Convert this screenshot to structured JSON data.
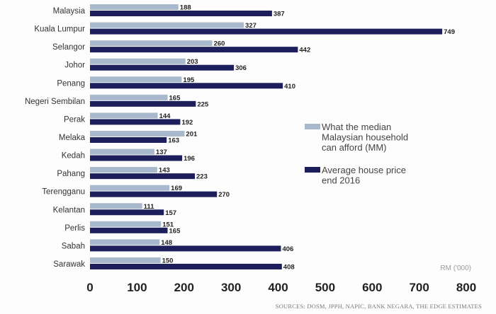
{
  "chart_data": {
    "type": "bar",
    "orientation": "horizontal",
    "categories": [
      "Malaysia",
      "Kuala Lumpur",
      "Selangor",
      "Johor",
      "Penang",
      "Negeri Sembilan",
      "Perak",
      "Melaka",
      "Kedah",
      "Pahang",
      "Terengganu",
      "Kelantan",
      "Perlis",
      "Sabah",
      "Sarawak"
    ],
    "series": [
      {
        "name": "What the median Malaysian household can afford (MM)",
        "legend_lines": [
          "What the median",
          "Malaysian household",
          "can afford (MM)"
        ],
        "color": "#a9b9cd",
        "values": [
          188,
          327,
          260,
          203,
          195,
          165,
          144,
          201,
          137,
          143,
          169,
          111,
          151,
          148,
          150
        ]
      },
      {
        "name": "Average house price end 2016",
        "legend_lines": [
          "Average house price",
          "end 2016"
        ],
        "color": "#1c1f5c",
        "values": [
          387,
          749,
          442,
          306,
          410,
          225,
          192,
          163,
          196,
          223,
          270,
          157,
          165,
          406,
          408
        ]
      }
    ],
    "xlim": [
      0,
      800
    ],
    "xticks": [
      0,
      100,
      200,
      300,
      400,
      500,
      600,
      700,
      800
    ],
    "unit_label": "RM ('000)",
    "legend_position": "right",
    "source": "SOURCES: DOSM, JPPH, NAPIC, BANK NEGARA, THE EDGE ESTIMATES"
  }
}
